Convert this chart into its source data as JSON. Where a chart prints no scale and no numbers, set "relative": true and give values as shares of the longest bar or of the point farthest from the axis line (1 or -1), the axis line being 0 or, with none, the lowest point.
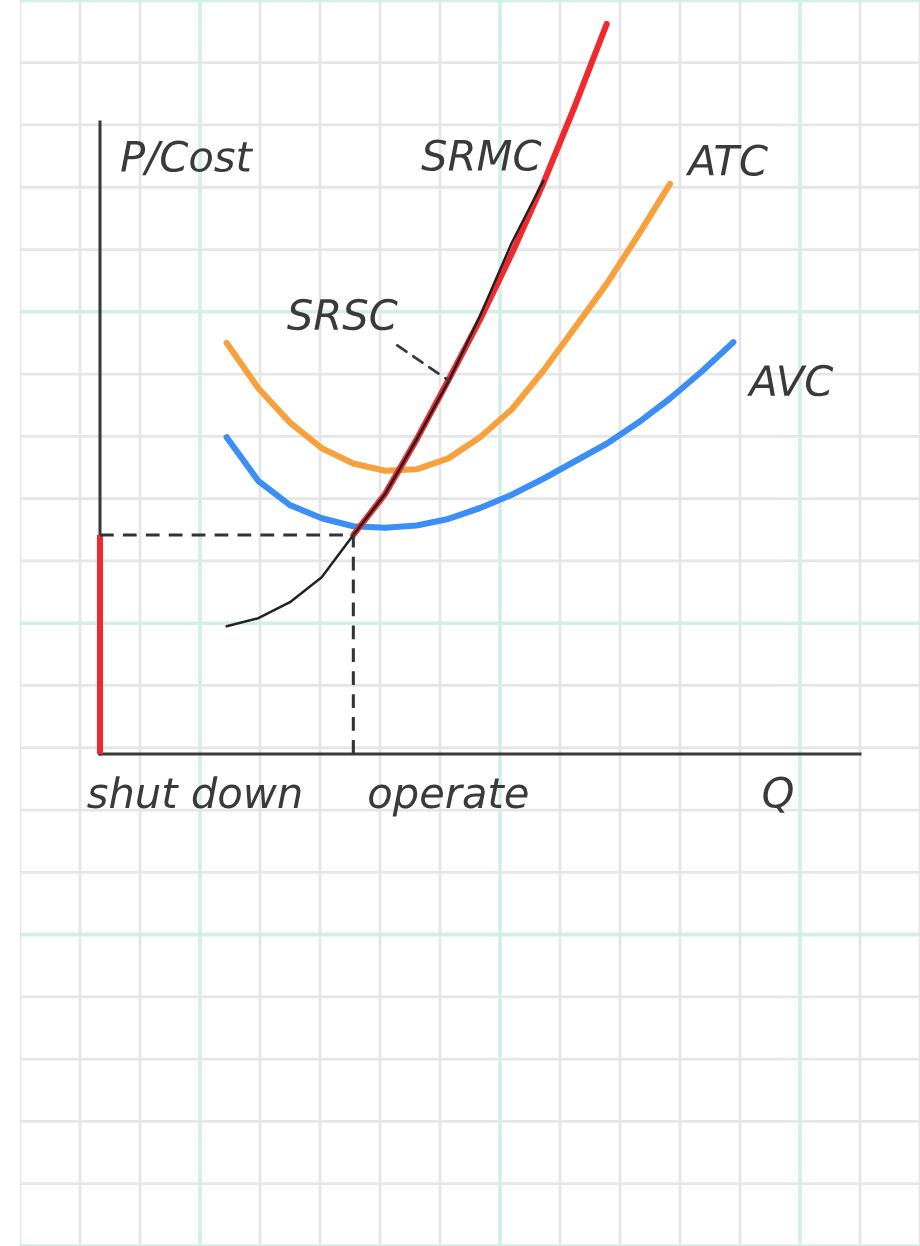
{
  "chart_data": {
    "type": "line",
    "relative": true,
    "ylabel": "P/Cost",
    "xlabel": "Q",
    "grid": true,
    "categories": [
      null,
      null,
      null,
      "shut down",
      null,
      null,
      null,
      null,
      null,
      null,
      null,
      "operate",
      null,
      null,
      null,
      null,
      null,
      null,
      null,
      null,
      null,
      null,
      null,
      null,
      null
    ],
    "series": [
      {
        "name": "ATC",
        "color": "#f8a03c",
        "values": [
          null,
          null,
          null,
          null,
          0.563,
          0.501,
          0.454,
          0.419,
          0.398,
          0.388,
          0.39,
          0.405,
          0.434,
          0.472,
          0.525,
          0.584,
          0.644,
          0.711,
          0.781,
          null,
          null,
          null,
          null,
          null,
          null
        ]
      },
      {
        "name": "AVC",
        "color": "#3a8ef6",
        "values": [
          null,
          null,
          null,
          null,
          0.434,
          0.374,
          0.341,
          0.323,
          0.312,
          0.31,
          0.313,
          0.322,
          0.337,
          0.355,
          0.377,
          0.401,
          0.425,
          0.454,
          0.487,
          0.524,
          0.564,
          null,
          null,
          null,
          null
        ]
      },
      {
        "type": "bar",
        "color": "#ee2a2e",
        "values": [
          0.3,
          null,
          null,
          null,
          null,
          null,
          null,
          null,
          null,
          null,
          null,
          null,
          null,
          null,
          null,
          null,
          null,
          null,
          null,
          null,
          null,
          null,
          null,
          null,
          null
        ]
      },
      {
        "name": "SRSC",
        "color": "#ee2a2e",
        "values": [
          null,
          null,
          null,
          null,
          null,
          null,
          null,
          null,
          0.3,
          0.356,
          0.431,
          0.512,
          0.595,
          0.685,
          0.782,
          0.888,
          1.0,
          null,
          null,
          null,
          null,
          null,
          null,
          null,
          null
        ]
      },
      {
        "name": "SRMC",
        "color": "#222222",
        "values": [
          null,
          null,
          null,
          null,
          0.175,
          0.186,
          0.208,
          0.242,
          0.3,
          0.356,
          0.431,
          0.51,
          0.6,
          0.7,
          0.785,
          null,
          null,
          null,
          null,
          null,
          null,
          null,
          null,
          null,
          null
        ]
      },
      {
        "type": "step",
        "color": "#333333",
        "line_style": "dashed",
        "values": [
          0.3,
          0.3,
          0.3,
          0.3,
          0.3,
          0.3,
          0.3,
          0.3,
          0,
          null,
          null,
          null,
          null,
          null,
          null,
          null,
          null,
          null,
          null,
          null,
          null,
          null,
          null,
          null,
          null
        ]
      }
    ]
  }
}
